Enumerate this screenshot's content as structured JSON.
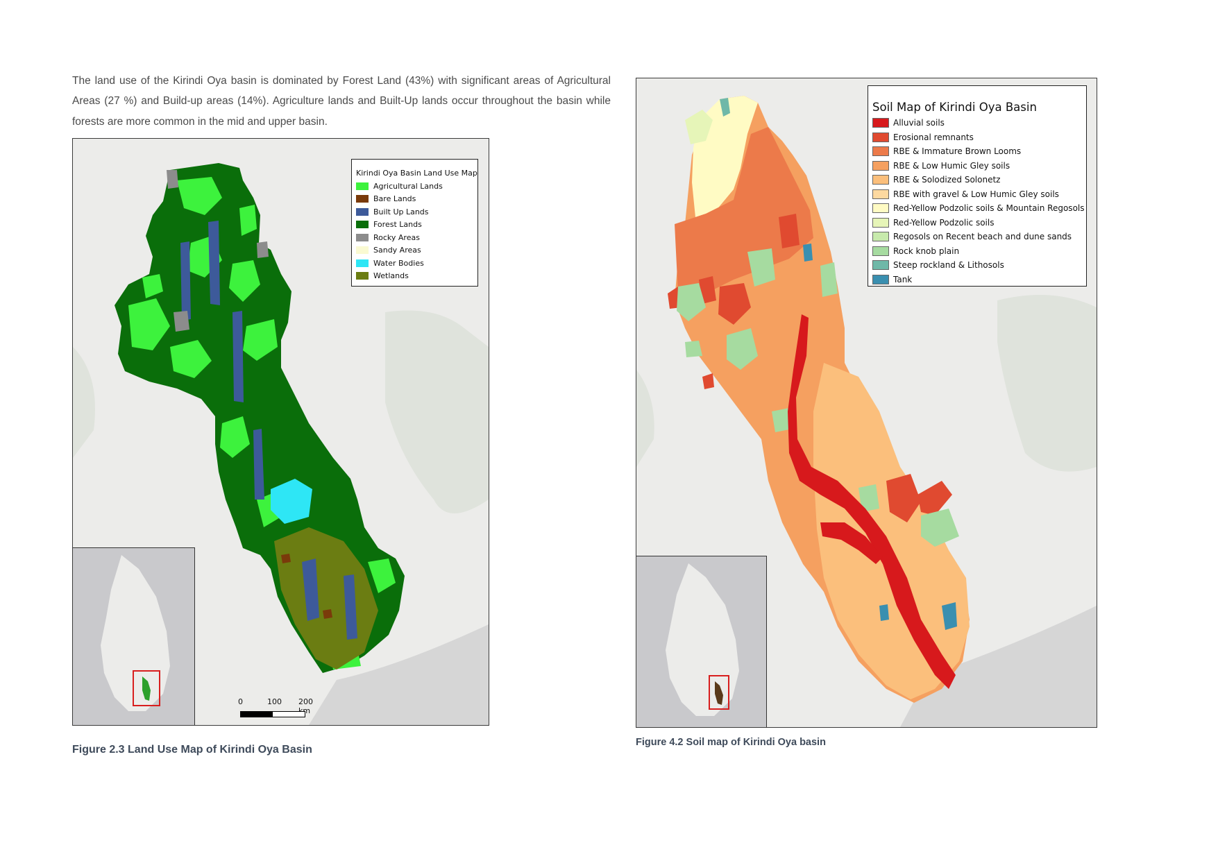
{
  "paragraph": "The land use of the Kirindi Oya basin is dominated by Forest Land (43%) with significant areas of Agricultural Areas (27 %) and Build-up areas (14%). Agriculture lands and Built-Up lands occur throughout the basin while forests are more common in the mid and upper basin.",
  "landuse_map": {
    "legend_title": "Kirindi Oya Basin Land Use Map",
    "legend_items": [
      {
        "label": "Agricultural Lands",
        "color": "#3df23d"
      },
      {
        "label": "Bare Lands",
        "color": "#7a3a0a"
      },
      {
        "label": "Built Up Lands",
        "color": "#3d5a9a"
      },
      {
        "label": "Forest Lands",
        "color": "#0a6e0a"
      },
      {
        "label": "Rocky Areas",
        "color": "#8c8c8c"
      },
      {
        "label": "Sandy Areas",
        "color": "#fafad2"
      },
      {
        "label": "Water Bodies",
        "color": "#2ee6f5"
      },
      {
        "label": "Wetlands",
        "color": "#6b7d12"
      }
    ],
    "scale": {
      "tick0": "0",
      "tick1": "100",
      "tick2": "200 km"
    },
    "caption": "Figure 2.3 Land Use Map of Kirindi Oya Basin"
  },
  "soil_map": {
    "legend_title": "Soil Map of Kirindi Oya Basin",
    "legend_items": [
      {
        "label": "Alluvial soils",
        "color": "#d7191c"
      },
      {
        "label": "Erosional remnants",
        "color": "#e04a30"
      },
      {
        "label": "RBE & Immature Brown Looms",
        "color": "#ec7a4a"
      },
      {
        "label": "RBE & Low Humic Gley soils",
        "color": "#f5a060"
      },
      {
        "label": "RBE & Solodized Solonetz",
        "color": "#fbbf7c"
      },
      {
        "label": "RBE with gravel & Low Humic Gley soils",
        "color": "#fdd9a0"
      },
      {
        "label": "Red-Yellow Podzolic soils & Mountain Regosols",
        "color": "#fffbc4"
      },
      {
        "label": "Red-Yellow Podzolic soils",
        "color": "#e6f5b8"
      },
      {
        "label": "Regosols on Recent beach and dune sands",
        "color": "#c7eaac"
      },
      {
        "label": "Rock knob plain",
        "color": "#a6dba0"
      },
      {
        "label": "Steep rockland & Lithosols",
        "color": "#6fb8a8"
      },
      {
        "label": "Tank",
        "color": "#3a8fb0"
      }
    ],
    "caption": "Figure 4.2 Soil map of Kirindi Oya basin"
  }
}
